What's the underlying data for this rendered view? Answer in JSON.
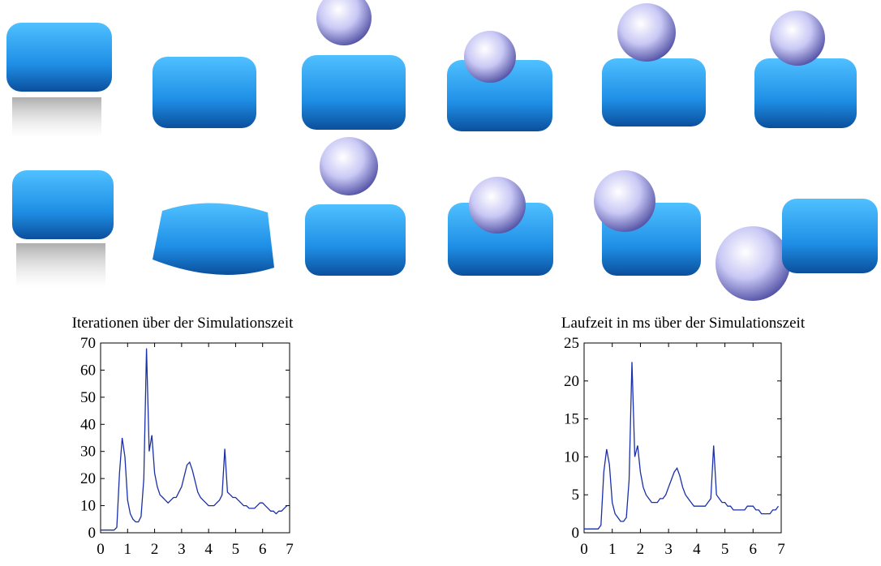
{
  "chart_data": [
    {
      "type": "line",
      "title": "Iterationen über der Simulationszeit",
      "x": [
        0,
        0.1,
        0.2,
        0.3,
        0.4,
        0.5,
        0.6,
        0.7,
        0.8,
        0.9,
        1,
        1.1,
        1.2,
        1.3,
        1.4,
        1.5,
        1.6,
        1.7,
        1.8,
        1.9,
        2,
        2.1,
        2.2,
        2.3,
        2.4,
        2.5,
        2.6,
        2.7,
        2.8,
        2.9,
        3,
        3.1,
        3.2,
        3.3,
        3.4,
        3.5,
        3.6,
        3.7,
        3.8,
        3.9,
        4,
        4.1,
        4.2,
        4.3,
        4.4,
        4.5,
        4.6,
        4.7,
        4.8,
        4.9,
        5,
        5.1,
        5.2,
        5.3,
        5.4,
        5.5,
        5.6,
        5.7,
        5.8,
        5.9,
        6,
        6.1,
        6.2,
        6.3,
        6.4,
        6.5,
        6.6,
        6.7,
        6.8,
        6.9
      ],
      "values": [
        1,
        1,
        1,
        1,
        1,
        1,
        2,
        22,
        35,
        28,
        12,
        7,
        5,
        4,
        4,
        6,
        20,
        68,
        30,
        36,
        22,
        17,
        14,
        13,
        12,
        11,
        12,
        13,
        13,
        15,
        17,
        21,
        25,
        26,
        23,
        19,
        15,
        13,
        12,
        11,
        10,
        10,
        10,
        11,
        12,
        14,
        31,
        15,
        14,
        13,
        13,
        12,
        11,
        10,
        10,
        9,
        9,
        9,
        10,
        11,
        11,
        10,
        9,
        8,
        8,
        7,
        8,
        8,
        9,
        10
      ],
      "color": "#1a2fa8",
      "xlim": [
        0,
        7
      ],
      "ylim": [
        0,
        70
      ],
      "xticks": [
        0,
        1,
        2,
        3,
        4,
        5,
        6,
        7
      ],
      "yticks": [
        0,
        10,
        20,
        30,
        40,
        50,
        60,
        70
      ]
    },
    {
      "type": "line",
      "title": "Laufzeit in ms über der Simulationszeit",
      "x": [
        0,
        0.1,
        0.2,
        0.3,
        0.4,
        0.5,
        0.6,
        0.7,
        0.8,
        0.9,
        1,
        1.1,
        1.2,
        1.3,
        1.4,
        1.5,
        1.6,
        1.7,
        1.8,
        1.9,
        2,
        2.1,
        2.2,
        2.3,
        2.4,
        2.5,
        2.6,
        2.7,
        2.8,
        2.9,
        3,
        3.1,
        3.2,
        3.3,
        3.4,
        3.5,
        3.6,
        3.7,
        3.8,
        3.9,
        4,
        4.1,
        4.2,
        4.3,
        4.4,
        4.5,
        4.6,
        4.7,
        4.8,
        4.9,
        5,
        5.1,
        5.2,
        5.3,
        5.4,
        5.5,
        5.6,
        5.7,
        5.8,
        5.9,
        6,
        6.1,
        6.2,
        6.3,
        6.4,
        6.5,
        6.6,
        6.7,
        6.8,
        6.9
      ],
      "values": [
        0.5,
        0.5,
        0.5,
        0.5,
        0.5,
        0.5,
        1,
        8,
        11,
        9,
        4,
        2.5,
        2,
        1.5,
        1.5,
        2,
        7,
        22.5,
        10,
        11.5,
        8,
        6,
        5,
        4.5,
        4,
        4,
        4,
        4.5,
        4.5,
        5,
        6,
        7,
        8,
        8.5,
        7.5,
        6,
        5,
        4.5,
        4,
        3.5,
        3.5,
        3.5,
        3.5,
        3.5,
        4,
        4.5,
        11.5,
        5,
        4.5,
        4,
        4,
        3.5,
        3.5,
        3,
        3,
        3,
        3,
        3,
        3.5,
        3.5,
        3.5,
        3,
        3,
        2.5,
        2.5,
        2.5,
        2.5,
        3,
        3,
        3.5
      ],
      "color": "#1a2fa8",
      "xlim": [
        0,
        7
      ],
      "ylim": [
        0,
        25
      ],
      "xticks": [
        0,
        1,
        2,
        3,
        4,
        5,
        6,
        7
      ],
      "yticks": [
        0,
        5,
        10,
        15,
        20,
        25
      ]
    }
  ]
}
